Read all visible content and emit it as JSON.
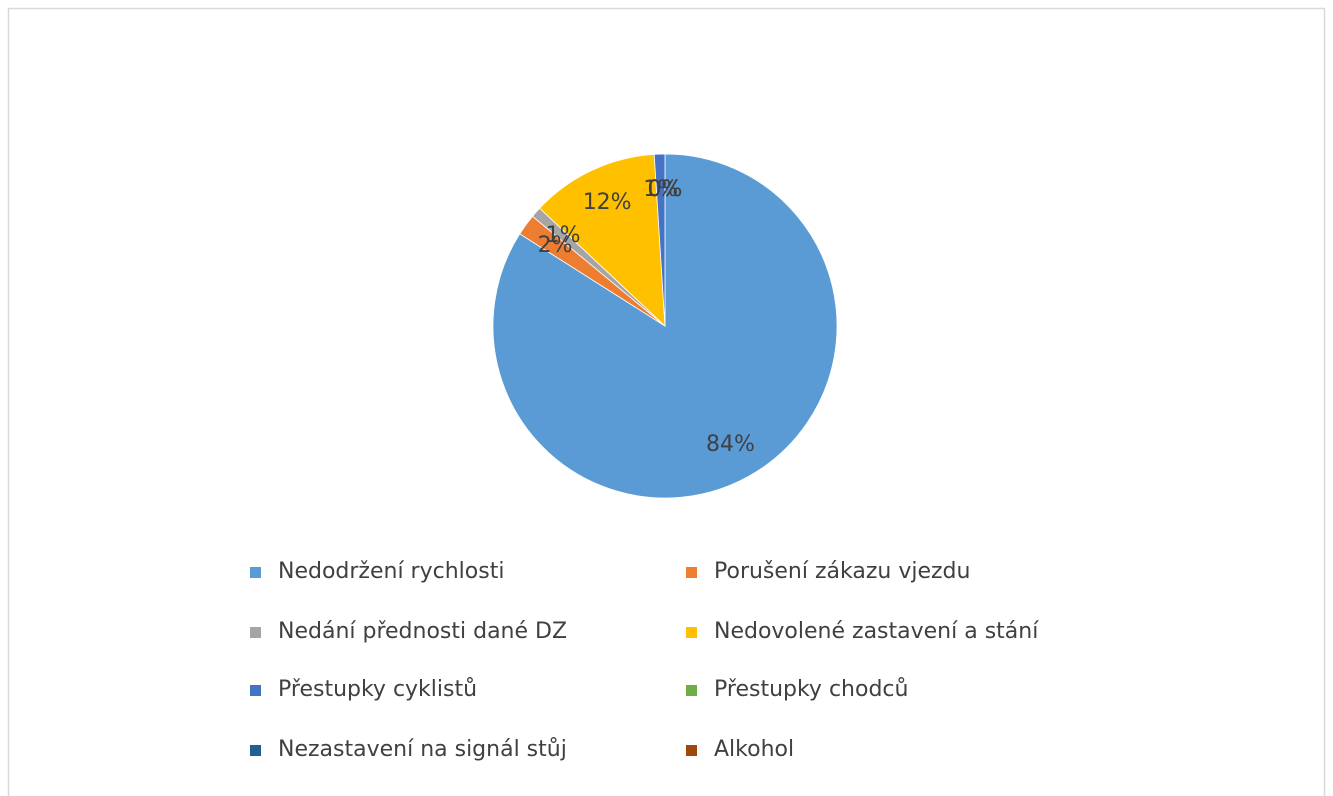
{
  "chart_data": {
    "type": "pie",
    "categories": [
      "Nedodržení rychlosti",
      "Porušení zákazu vjezdu",
      "Nedání přednosti dané DZ",
      "Nedovolené zastavení a stání",
      "Přestupky cyklistů",
      "Přestupky chodců",
      "Nezastavení na signál stůj",
      "Alkohol"
    ],
    "values": [
      84,
      2,
      1,
      12,
      1,
      0,
      0,
      0
    ],
    "value_labels": [
      "84%",
      "2%",
      "1%",
      "12%",
      "1%",
      "0%",
      "0%",
      "0%"
    ],
    "colors": [
      "#5b9bd5",
      "#ed7d31",
      "#a5a5a5",
      "#ffc000",
      "#4472c4",
      "#70ad47",
      "#255e91",
      "#9e480e"
    ],
    "legend": "bottom"
  }
}
